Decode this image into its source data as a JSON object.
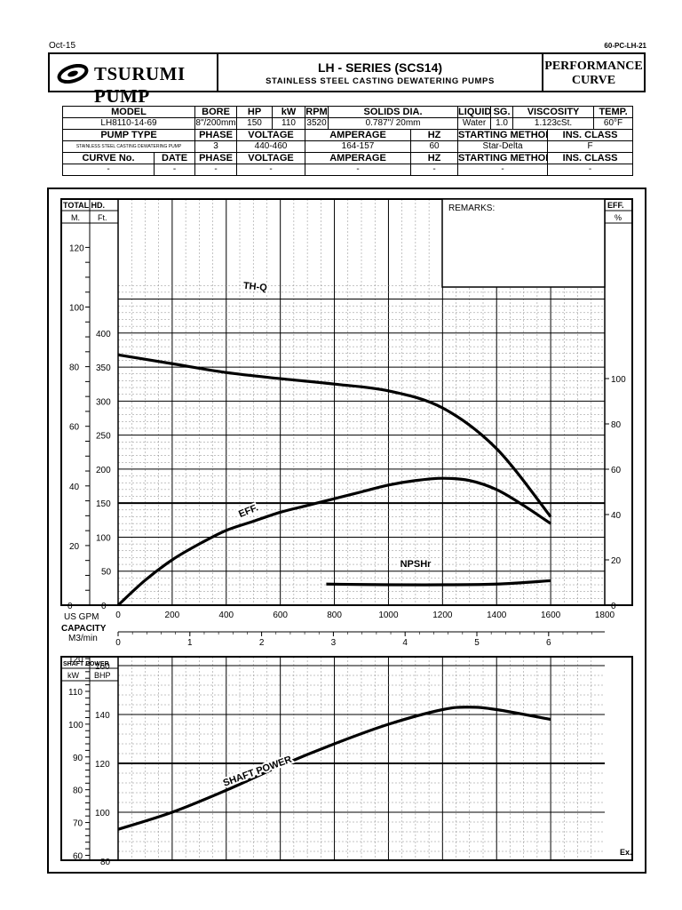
{
  "header": {
    "date": "Oct-15",
    "doc_code": "60-PC-LH-21",
    "brand": "TSURUMI PUMP",
    "series_title": "LH - SERIES (SCS14)",
    "series_subtitle": "STAINLESS STEEL CASTING DEWATERING PUMPS",
    "perf_line1": "PERFORMANCE",
    "perf_line2": "CURVE"
  },
  "spec": {
    "row1": [
      "MODEL",
      "BORE",
      "HP",
      "kW",
      "RPM",
      "SOLIDS DIA.",
      "LIQUID",
      "SG.",
      "VISCOSITY",
      "TEMP."
    ],
    "row2": [
      "LH8110-14-69",
      "8\"/200mm",
      "150",
      "110",
      "3520",
      "0.787\"/ 20mm",
      "Water",
      "1.0",
      "1.123cSt.",
      "60°F"
    ],
    "row3": [
      "PUMP TYPE",
      "PHASE",
      "VOLTAGE",
      "AMPERAGE",
      "HZ",
      "STARTING METHOD",
      "INS. CLASS"
    ],
    "row4": [
      "STAINLESS STEEL CASTING DEWATERING PUMP",
      "3",
      "440-460",
      "164-157",
      "60",
      "Star-Delta",
      "F"
    ],
    "row5": [
      "CURVE No.",
      "DATE",
      "PHASE",
      "VOLTAGE",
      "AMPERAGE",
      "HZ",
      "STARTING METHOD",
      "INS. CLASS"
    ],
    "row6": [
      "-",
      "-",
      "-",
      "-",
      "-",
      "-",
      "-",
      "-"
    ]
  },
  "upper_chart": {
    "total_hd_label": "TOTAL HD.",
    "unit_m": "M.",
    "unit_ft": "Ft.",
    "eff_label": "EFF.",
    "eff_unit": "%",
    "remarks_label": "REMARKS:",
    "m_ticks": [
      "120",
      "100",
      "80",
      "60",
      "40",
      "20",
      "0"
    ],
    "ft_ticks": [
      "400",
      "350",
      "300",
      "250",
      "200",
      "150",
      "100",
      "50",
      "0"
    ],
    "eff_ticks": [
      "100",
      "80",
      "60",
      "40",
      "20",
      "0"
    ],
    "gpm_label": "US GPM",
    "capacity_label": "CAPACITY",
    "m3_label": "M3/min",
    "gpm_ticks": [
      "0",
      "200",
      "400",
      "600",
      "800",
      "1000",
      "1200",
      "1400",
      "1600",
      "1800"
    ],
    "m3_ticks": [
      "0",
      "1",
      "2",
      "3",
      "4",
      "5",
      "6"
    ],
    "curve_labels": {
      "thq": "TH-Q",
      "eff": "EFF.",
      "npsh": "NPSHr"
    }
  },
  "lower_chart": {
    "title": "SHAFT POWER",
    "unit_kw": "kW",
    "unit_bhp": "BHP",
    "kw_ticks": [
      "120",
      "110",
      "100",
      "90",
      "80",
      "70",
      "60"
    ],
    "bhp_ticks": [
      "160",
      "140",
      "120",
      "100",
      "80"
    ],
    "curve_label": "SHAFT POWER",
    "footnote": "Ex."
  },
  "chart_data": [
    {
      "type": "line",
      "xlabel": "CAPACITY (US GPM)",
      "xlim": [
        0,
        1800
      ],
      "y_axes": {
        "head_ft": [
          0,
          400
        ],
        "head_m": [
          0,
          120
        ],
        "eff_pct": [
          0,
          100
        ]
      },
      "series": [
        {
          "name": "TH-Q",
          "unit": "ft",
          "x": [
            0,
            200,
            400,
            600,
            800,
            1000,
            1200,
            1400,
            1600
          ],
          "values": [
            368,
            355,
            342,
            333,
            325,
            315,
            290,
            230,
            130
          ]
        },
        {
          "name": "EFF.",
          "unit": "%",
          "x": [
            0,
            100,
            200,
            300,
            400,
            500,
            600,
            700,
            800,
            900,
            1000,
            1100,
            1200,
            1300,
            1400,
            1500,
            1600
          ],
          "values": [
            0,
            11,
            20,
            27,
            33,
            37,
            41,
            44,
            47,
            50,
            53,
            55,
            56,
            55,
            51,
            44,
            36
          ]
        },
        {
          "name": "NPSHr",
          "unit": "ft",
          "x": [
            770,
            1000,
            1200,
            1400,
            1600
          ],
          "values": [
            31,
            30,
            30,
            31,
            36
          ]
        }
      ]
    },
    {
      "type": "line",
      "title": "SHAFT POWER",
      "xlim": [
        0,
        1800
      ],
      "y_axes": {
        "bhp": [
          80,
          160
        ]
      },
      "series": [
        {
          "name": "SHAFT POWER",
          "unit": "BHP",
          "x": [
            0,
            200,
            400,
            600,
            800,
            1000,
            1200,
            1300,
            1400,
            1600
          ],
          "values": [
            93,
            100,
            109,
            119,
            128,
            136,
            142,
            143,
            142,
            138
          ]
        }
      ]
    }
  ]
}
